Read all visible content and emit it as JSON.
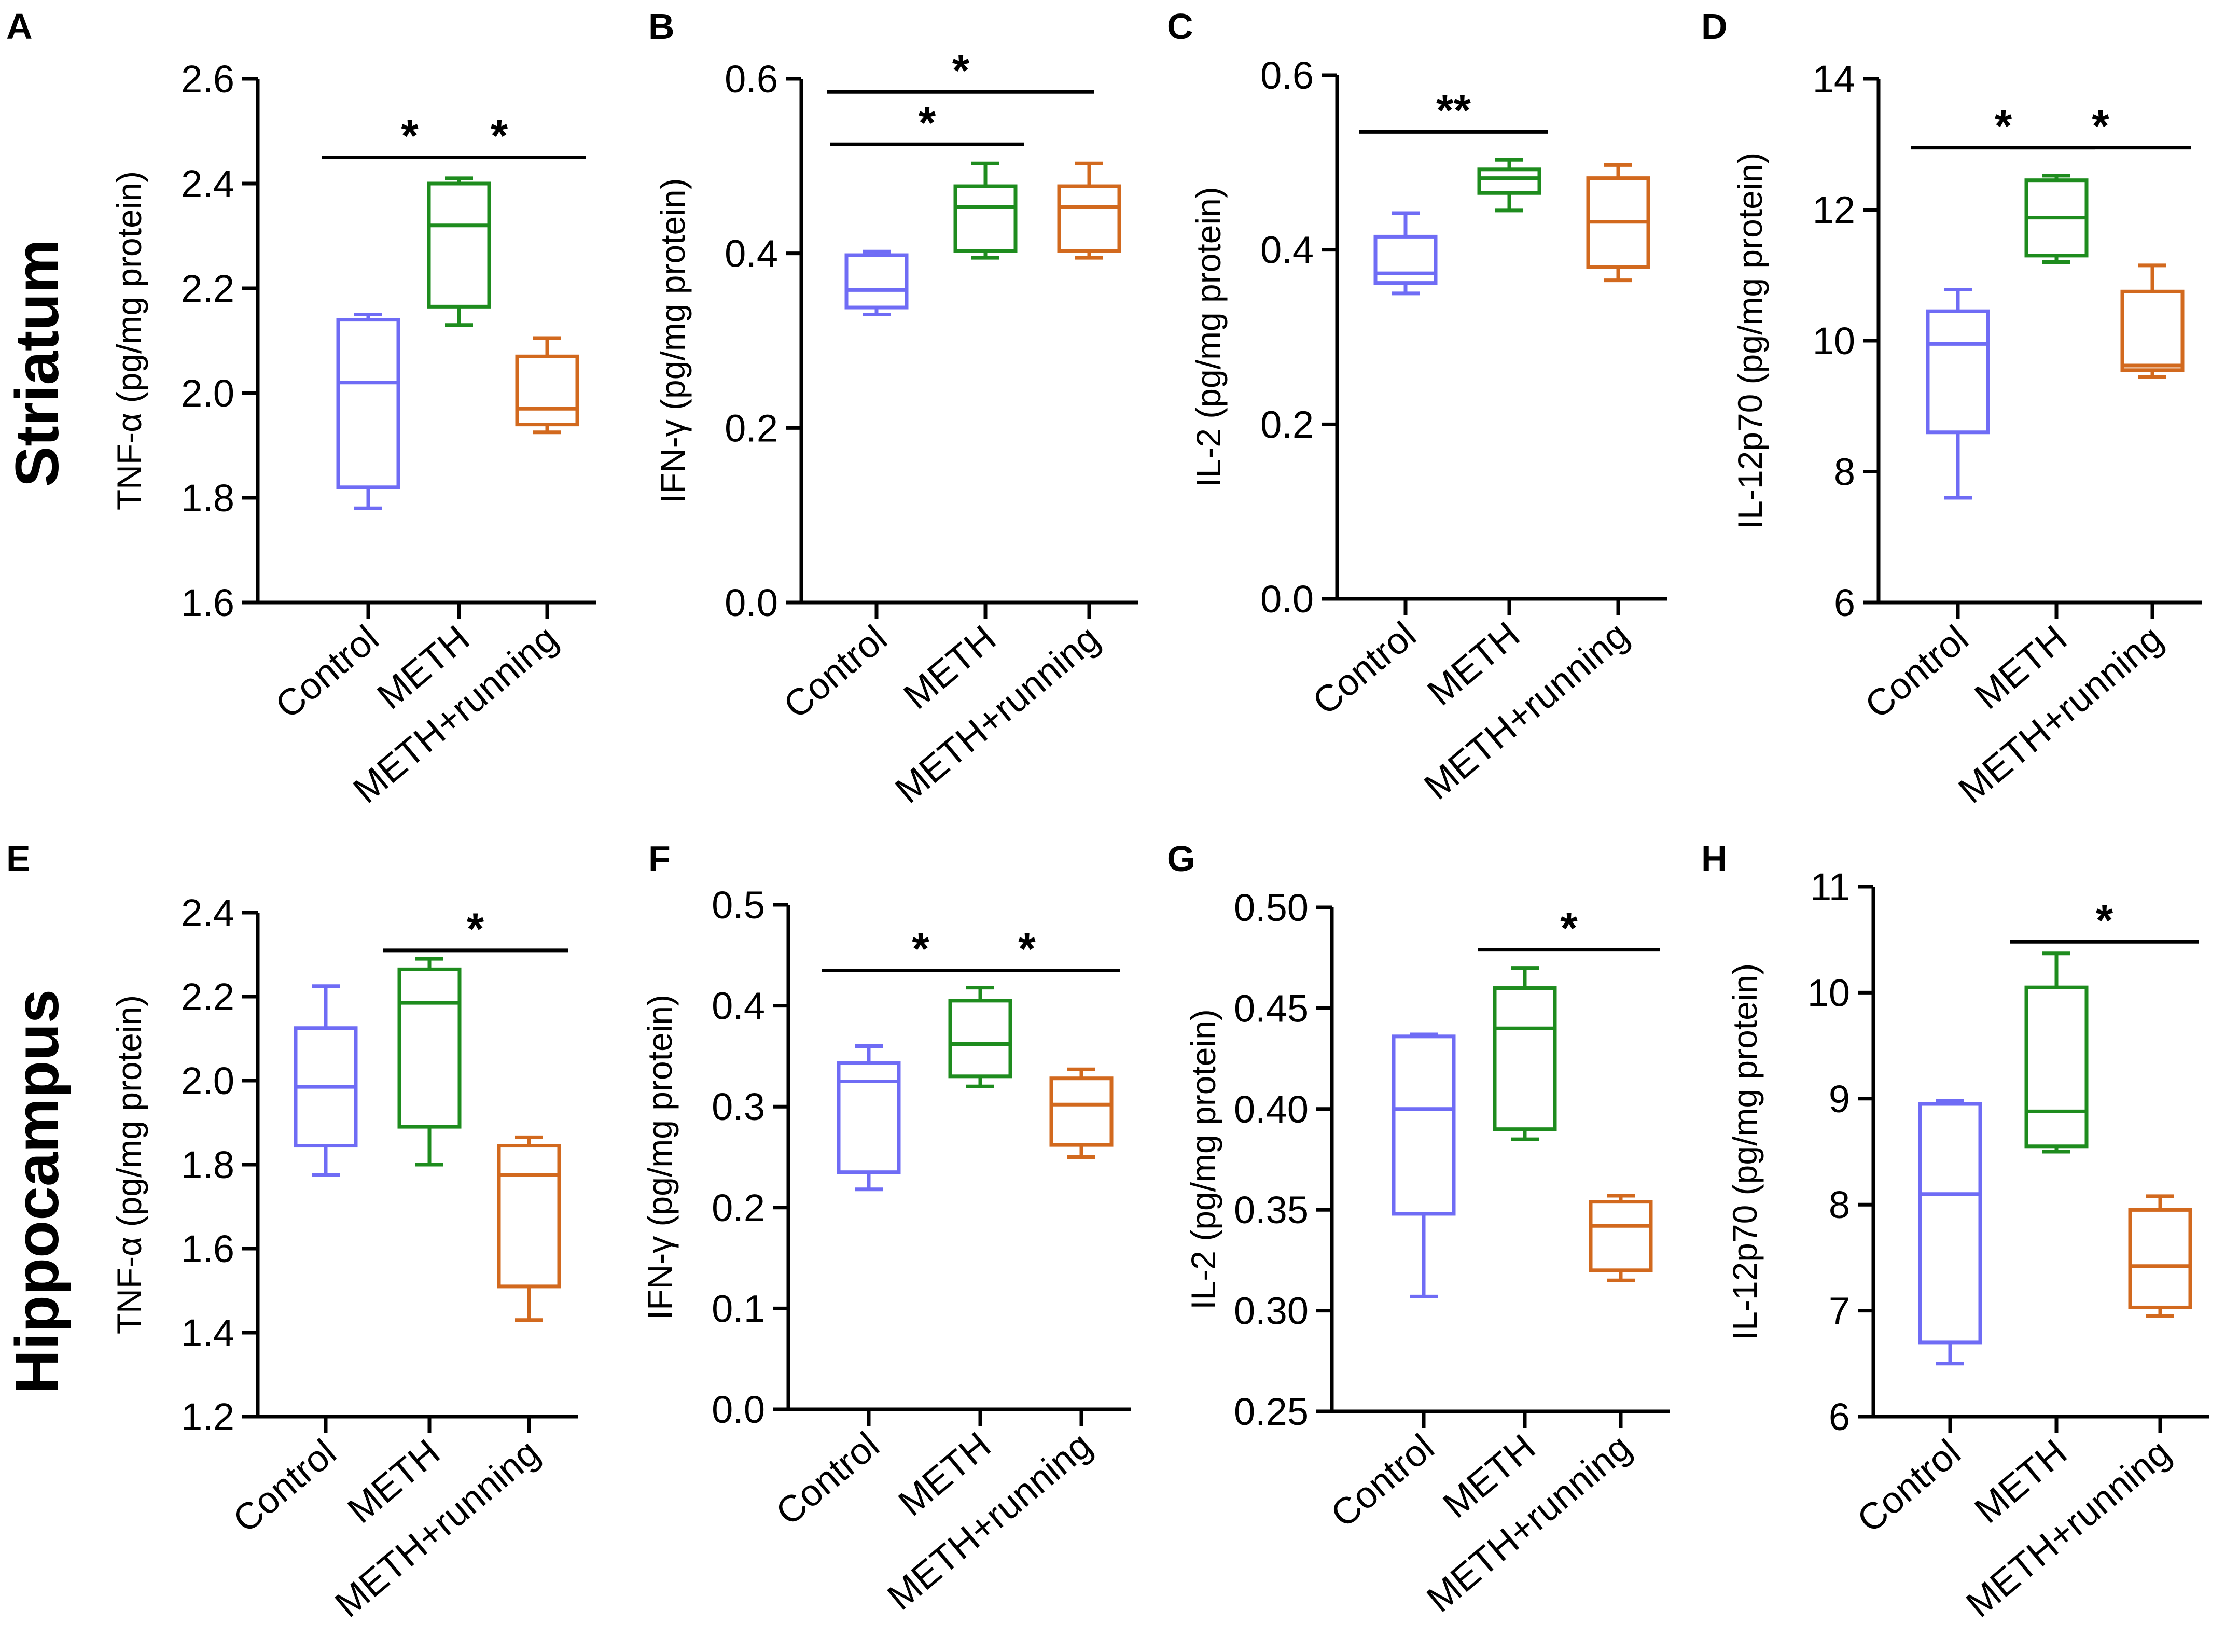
{
  "figure": {
    "row_labels": [
      "Striatum",
      "Hippocampus"
    ],
    "group_colors": [
      "#6f6cf5",
      "#1e8c1e",
      "#d2691e"
    ],
    "axis_color": "#000000"
  },
  "chart_data": [
    {
      "panel": "A",
      "type": "boxplot",
      "row": "Striatum",
      "ylabel": "TNF-α (pg/mg protein)",
      "categories": [
        "Control",
        "METH",
        "METH+running"
      ],
      "ylim": [
        1.6,
        2.6
      ],
      "yticks": [
        "1.6",
        "1.8",
        "2.0",
        "2.2",
        "2.4",
        "2.6"
      ],
      "boxes": [
        {
          "min": 1.78,
          "q1": 1.82,
          "median": 2.02,
          "q3": 2.14,
          "max": 2.15
        },
        {
          "min": 2.13,
          "q1": 2.165,
          "median": 2.32,
          "q3": 2.4,
          "max": 2.41
        },
        {
          "min": 1.925,
          "q1": 1.94,
          "median": 1.97,
          "q3": 2.07,
          "max": 2.105
        }
      ],
      "significance": [
        {
          "from": 0,
          "to": 1,
          "y": 2.45,
          "label": "*"
        },
        {
          "from": 1,
          "to": 2,
          "y": 2.45,
          "label": "*"
        }
      ]
    },
    {
      "panel": "B",
      "type": "boxplot",
      "row": "Striatum",
      "ylabel": "IFN-γ (pg/mg protein)",
      "categories": [
        "Control",
        "METH",
        "METH+running"
      ],
      "ylim": [
        0,
        0.6
      ],
      "yticks": [
        "0.0",
        "0.2",
        "0.4",
        "0.6"
      ],
      "boxes": [
        {
          "min": 0.33,
          "q1": 0.338,
          "median": 0.358,
          "q3": 0.398,
          "max": 0.402
        },
        {
          "min": 0.395,
          "q1": 0.403,
          "median": 0.453,
          "q3": 0.477,
          "max": 0.503
        },
        {
          "min": 0.395,
          "q1": 0.403,
          "median": 0.453,
          "q3": 0.477,
          "max": 0.503
        }
      ],
      "significance": [
        {
          "from": 0,
          "to": 1,
          "y": 0.525,
          "label": "*"
        },
        {
          "from": 0,
          "to": 2,
          "y": 0.585,
          "label": "*"
        }
      ]
    },
    {
      "panel": "C",
      "type": "boxplot",
      "row": "Striatum",
      "ylabel": "IL-2 (pg/mg protein)",
      "categories": [
        "Control",
        "METH",
        "METH+running"
      ],
      "ylim": [
        0,
        0.6
      ],
      "yticks": [
        "0.0",
        "0.2",
        "0.4",
        "0.6"
      ],
      "boxes": [
        {
          "min": 0.35,
          "q1": 0.362,
          "median": 0.373,
          "q3": 0.415,
          "max": 0.442
        },
        {
          "min": 0.445,
          "q1": 0.465,
          "median": 0.482,
          "q3": 0.492,
          "max": 0.503
        },
        {
          "min": 0.365,
          "q1": 0.38,
          "median": 0.432,
          "q3": 0.482,
          "max": 0.497
        }
      ],
      "significance": [
        {
          "from": 0,
          "to": 1,
          "y": 0.535,
          "label": "**"
        }
      ]
    },
    {
      "panel": "D",
      "type": "boxplot",
      "row": "Striatum",
      "ylabel": "IL-12p70 (pg/mg protein)",
      "categories": [
        "Control",
        "METH",
        "METH+running"
      ],
      "ylim": [
        6,
        14
      ],
      "yticks": [
        "6",
        "8",
        "10",
        "12",
        "14"
      ],
      "boxes": [
        {
          "min": 7.6,
          "q1": 8.6,
          "median": 9.95,
          "q3": 10.45,
          "max": 10.78
        },
        {
          "min": 11.2,
          "q1": 11.3,
          "median": 11.88,
          "q3": 12.45,
          "max": 12.52
        },
        {
          "min": 9.45,
          "q1": 9.55,
          "median": 9.62,
          "q3": 10.75,
          "max": 11.15
        }
      ],
      "significance": [
        {
          "from": 0,
          "to": 1,
          "y": 12.95,
          "label": "*"
        },
        {
          "from": 1,
          "to": 2,
          "y": 12.95,
          "label": "*"
        }
      ]
    },
    {
      "panel": "E",
      "type": "boxplot",
      "row": "Hippocampus",
      "ylabel": "TNF-α (pg/mg protein)",
      "categories": [
        "Control",
        "METH",
        "METH+running"
      ],
      "ylim": [
        1.2,
        2.4
      ],
      "yticks": [
        "1.2",
        "1.4",
        "1.6",
        "1.8",
        "2.0",
        "2.2",
        "2.4"
      ],
      "boxes": [
        {
          "min": 1.775,
          "q1": 1.845,
          "median": 1.985,
          "q3": 2.125,
          "max": 2.225
        },
        {
          "min": 1.8,
          "q1": 1.89,
          "median": 2.185,
          "q3": 2.265,
          "max": 2.29
        },
        {
          "min": 1.43,
          "q1": 1.51,
          "median": 1.775,
          "q3": 1.845,
          "max": 1.865
        }
      ],
      "significance": [
        {
          "from": 1,
          "to": 2,
          "y": 2.31,
          "label": "*"
        }
      ]
    },
    {
      "panel": "F",
      "type": "boxplot",
      "row": "Hippocampus",
      "ylabel": "IFN-γ (pg/mg protein)",
      "categories": [
        "Control",
        "METH",
        "METH+running"
      ],
      "ylim": [
        0,
        0.5
      ],
      "yticks": [
        "0.0",
        "0.1",
        "0.2",
        "0.3",
        "0.4",
        "0.5"
      ],
      "boxes": [
        {
          "min": 0.218,
          "q1": 0.235,
          "median": 0.325,
          "q3": 0.343,
          "max": 0.36
        },
        {
          "min": 0.32,
          "q1": 0.33,
          "median": 0.362,
          "q3": 0.405,
          "max": 0.418
        },
        {
          "min": 0.25,
          "q1": 0.262,
          "median": 0.302,
          "q3": 0.328,
          "max": 0.337
        }
      ],
      "significance": [
        {
          "from": 0,
          "to": 1,
          "y": 0.435,
          "label": "*"
        },
        {
          "from": 1,
          "to": 2,
          "y": 0.435,
          "label": "*"
        }
      ]
    },
    {
      "panel": "G",
      "type": "boxplot",
      "row": "Hippocampus",
      "ylabel": "IL-2 (pg/mg protein)",
      "categories": [
        "Control",
        "METH",
        "METH+running"
      ],
      "ylim": [
        0.25,
        0.5
      ],
      "yticks": [
        "0.25",
        "0.30",
        "0.35",
        "0.40",
        "0.45",
        "0.50"
      ],
      "boxes": [
        {
          "min": 0.307,
          "q1": 0.348,
          "median": 0.4,
          "q3": 0.436,
          "max": 0.437
        },
        {
          "min": 0.385,
          "q1": 0.39,
          "median": 0.44,
          "q3": 0.46,
          "max": 0.47
        },
        {
          "min": 0.315,
          "q1": 0.32,
          "median": 0.342,
          "q3": 0.354,
          "max": 0.357
        }
      ],
      "significance": [
        {
          "from": 1,
          "to": 2,
          "y": 0.479,
          "label": "*"
        }
      ]
    },
    {
      "panel": "H",
      "type": "boxplot",
      "row": "Hippocampus",
      "ylabel": "IL-12p70 (pg/mg protein)",
      "categories": [
        "Control",
        "METH",
        "METH+running"
      ],
      "ylim": [
        6,
        11
      ],
      "yticks": [
        "6",
        "7",
        "8",
        "9",
        "10",
        "11"
      ],
      "boxes": [
        {
          "min": 6.5,
          "q1": 6.7,
          "median": 8.1,
          "q3": 8.95,
          "max": 8.98
        },
        {
          "min": 8.5,
          "q1": 8.55,
          "median": 8.88,
          "q3": 10.05,
          "max": 10.37
        },
        {
          "min": 6.95,
          "q1": 7.03,
          "median": 7.42,
          "q3": 7.95,
          "max": 8.08
        }
      ],
      "significance": [
        {
          "from": 1,
          "to": 2,
          "y": 10.48,
          "label": "*"
        }
      ]
    }
  ]
}
